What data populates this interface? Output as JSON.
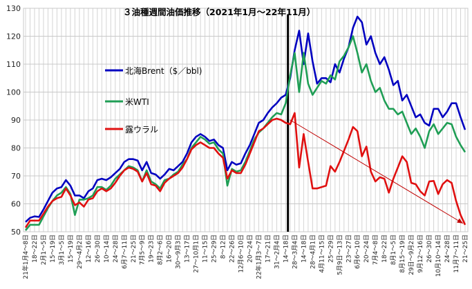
{
  "chart_data": {
    "type": "line",
    "title": "３油種週間油価推移（2021年1月～22年11月）",
    "xlabel": "",
    "ylabel": "",
    "ylim": [
      50,
      130
    ],
    "yticks": [
      50,
      60,
      70,
      80,
      90,
      100,
      110,
      120,
      130
    ],
    "grid": true,
    "legend_position": "upper-left inside plot",
    "x_tick_labels": [
      "21年1月4～8日",
      "18～22日",
      "2月1～5日",
      "15～19日",
      "3月1～5日",
      "15～19日",
      "29～4月2日",
      "12～16日",
      "26～30日",
      "10～14日",
      "24～28日",
      "6月7～11日",
      "21～25日",
      "7月5～9日",
      "19～23日",
      "8月2～6日",
      "16～20日",
      "30～9月3日",
      "13～17日",
      "27～10月1日",
      "11～15日",
      "25～29日",
      "8～12日",
      "22～26日",
      "12月6～10日",
      "20～24日",
      "22年1月3～7日",
      "17～21日",
      "31～2月4日",
      "14～18日",
      "28～3月4日",
      "14～18日",
      "28～4月1日",
      "4月11～15日",
      "25～29日",
      "5月9日～13日",
      "23～27日",
      "6月6～10日",
      "20～24日",
      "7月4～8日",
      "18～22日",
      "8月1～5日",
      "8月15～19日",
      "29日～9月2日",
      "9月12～16日",
      "26～30日",
      "10月10～14日",
      "24～28日",
      "11月7～11日",
      "21～25日"
    ],
    "event_marker_week_index": 58.5,
    "trend_arrow": {
      "from": [
        59,
        90
      ],
      "to": [
        98,
        52.5
      ],
      "color": "#c00000"
    },
    "series": [
      {
        "name": "北海Brent（$／bbl)",
        "color": "#0000c0",
        "values": [
          53.5,
          55,
          55.5,
          55.3,
          58,
          61,
          64,
          65.5,
          66,
          68.5,
          66.5,
          63,
          63,
          62,
          64.5,
          65.5,
          68.5,
          69,
          68.5,
          69.5,
          71,
          72.5,
          75,
          76,
          76,
          75.5,
          72,
          75,
          71,
          70.5,
          69,
          70.5,
          72.5,
          72,
          73.5,
          75,
          78,
          82,
          84,
          85,
          84,
          82.5,
          83,
          81,
          80,
          72,
          75,
          74,
          74.5,
          78,
          81,
          85,
          89,
          90,
          92.5,
          94.5,
          96,
          98,
          99,
          105,
          115,
          122,
          110,
          121,
          111,
          103,
          105,
          105,
          103.5,
          110,
          107,
          112,
          116,
          123,
          127,
          125,
          117,
          120,
          114,
          110,
          112.5,
          108,
          102.5,
          104,
          97,
          99,
          95,
          91,
          92,
          89,
          88,
          94,
          94,
          91,
          93,
          96,
          96,
          91,
          86.5
        ]
      },
      {
        "name": "米WTI",
        "color": "#1f9e55",
        "values": [
          50.5,
          52.5,
          52.5,
          52.5,
          55.5,
          58.5,
          61,
          63,
          64,
          66,
          63.5,
          56,
          61.5,
          61.5,
          62,
          63,
          66,
          66,
          65,
          66.5,
          69,
          70.5,
          72,
          73.5,
          73,
          72,
          68,
          72,
          68,
          67,
          65.5,
          68.5,
          69,
          70.5,
          71.5,
          74,
          76,
          80,
          82,
          84,
          83,
          81.5,
          82,
          79.5,
          78,
          66.5,
          72.5,
          71.5,
          72,
          75,
          79,
          83,
          85.5,
          87,
          89,
          91,
          92.5,
          92,
          96,
          106,
          114,
          100,
          114,
          103,
          99,
          101.5,
          104,
          103,
          106,
          104.5,
          111,
          113,
          116,
          120,
          114,
          107,
          110,
          104,
          100,
          101.5,
          97,
          94,
          94,
          92,
          93,
          89,
          85,
          87,
          84,
          80,
          86,
          88.5,
          85,
          87,
          89,
          88.5,
          84,
          81,
          78.5
        ]
      },
      {
        "name": "露ウラル",
        "color": "#e01010",
        "values": [
          51.5,
          54,
          54,
          54,
          56.5,
          59,
          61,
          62,
          62.5,
          65.5,
          63,
          59.5,
          60.5,
          59,
          61.5,
          62,
          64.5,
          65.5,
          64.5,
          65.5,
          67.5,
          70,
          72,
          73,
          72.5,
          71.5,
          68,
          71,
          67,
          66.5,
          64.5,
          67.5,
          69,
          70,
          71,
          73,
          76,
          79.5,
          81,
          82,
          81,
          80,
          80,
          78,
          76.5,
          69,
          72,
          71,
          71,
          74,
          78,
          82,
          86,
          87,
          88.5,
          90,
          90.5,
          90,
          89,
          88.5,
          92.5,
          73,
          85,
          75,
          65.5,
          65.5,
          66,
          66.5,
          73.5,
          71.5,
          75,
          79,
          83,
          87.5,
          86,
          77,
          80.5,
          71.5,
          68,
          69.5,
          69,
          64,
          69,
          73,
          77,
          75,
          67.5,
          67,
          64.5,
          63,
          68,
          68.2,
          63.5,
          67,
          68.5,
          67.5,
          61,
          56,
          52.5
        ]
      }
    ]
  }
}
